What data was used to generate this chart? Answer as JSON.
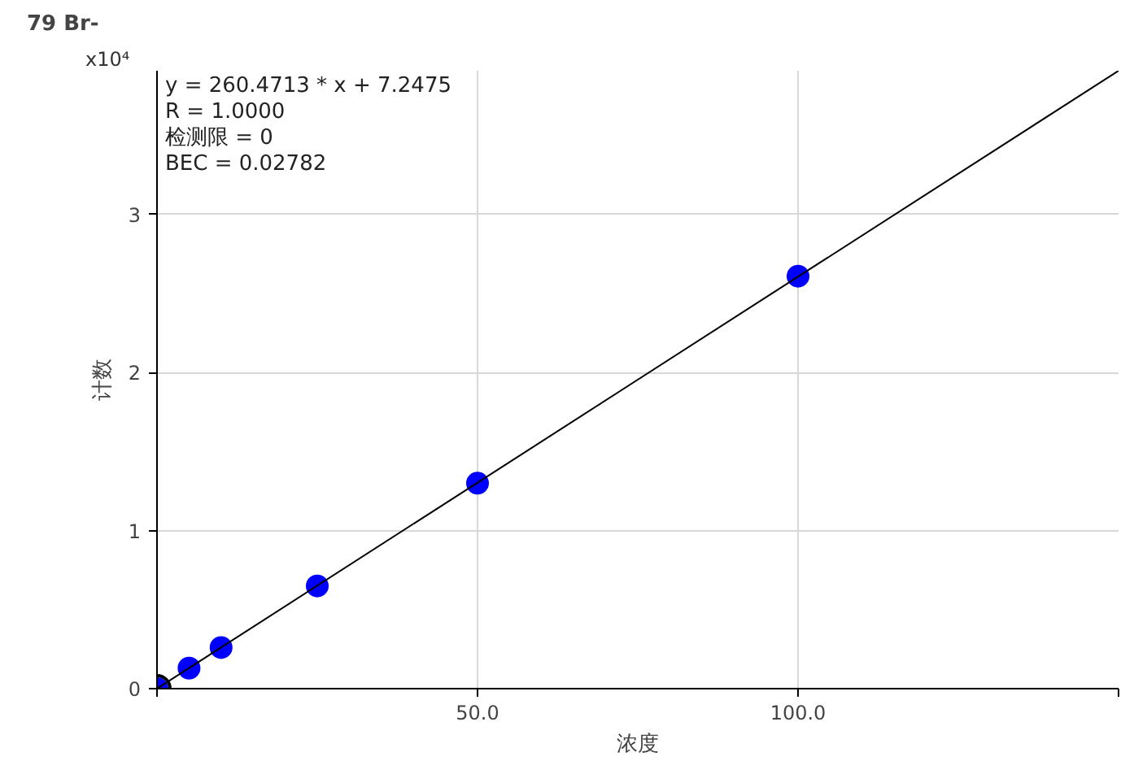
{
  "chart_data": {
    "type": "scatter",
    "title": "79 Br-",
    "xlabel": "浓度",
    "ylabel": "计数",
    "annotations": [
      "x10⁴",
      "y = 260.4713 * x  + 7.2475",
      "R =  1.0000",
      "检测限 = 0",
      "BEC = 0.02782"
    ],
    "series": [
      {
        "color": "#0000ff",
        "x": [
          0,
          5,
          10,
          25,
          50,
          100
        ],
        "values": [
          0,
          0.13,
          0.26,
          0.65,
          1.3,
          2.61
        ],
        "marker": "circle"
      },
      {
        "type": "line",
        "color": "#000000",
        "x": [
          0,
          150
        ],
        "values": [
          0,
          3.91
        ],
        "marker": "none"
      },
      {
        "color": "#000000",
        "x": [
          0
        ],
        "values": [
          0
        ],
        "marker": "circle"
      }
    ],
    "xlim": [
      0,
      150
    ],
    "ylim": [
      0,
      3.91
    ],
    "xticks": [
      {
        "value": 0,
        "label": null
      },
      {
        "value": 50,
        "label": "50.0"
      },
      {
        "value": 100,
        "label": "100.0"
      },
      {
        "value": 150,
        "label": null
      }
    ],
    "yticks": [
      0,
      1,
      2,
      3
    ],
    "grid": true
  }
}
